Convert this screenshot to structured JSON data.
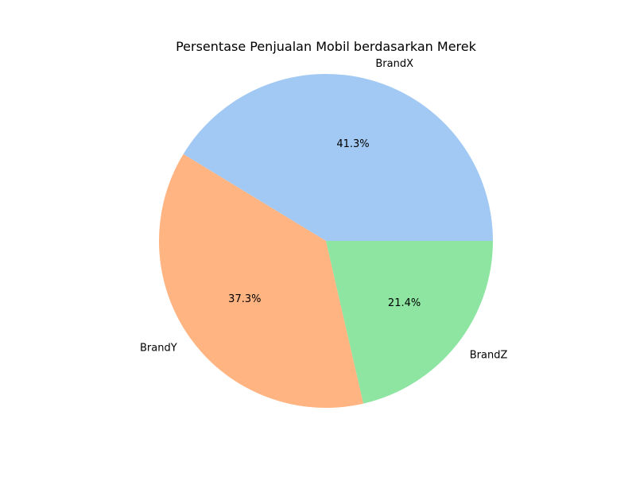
{
  "chart_data": {
    "type": "pie",
    "title": "Persentase Penjualan Mobil berdasarkan Merek",
    "categories": [
      "BrandX",
      "BrandY",
      "BrandZ"
    ],
    "values": [
      41.3,
      37.3,
      21.4
    ],
    "percent_labels": [
      "41.3%",
      "37.3%",
      "21.4%"
    ],
    "colors": [
      "#a1c9f4",
      "#ffb482",
      "#8de5a1"
    ],
    "start_angle_deg": 0,
    "direction": "counterclockwise",
    "legend": "none"
  }
}
